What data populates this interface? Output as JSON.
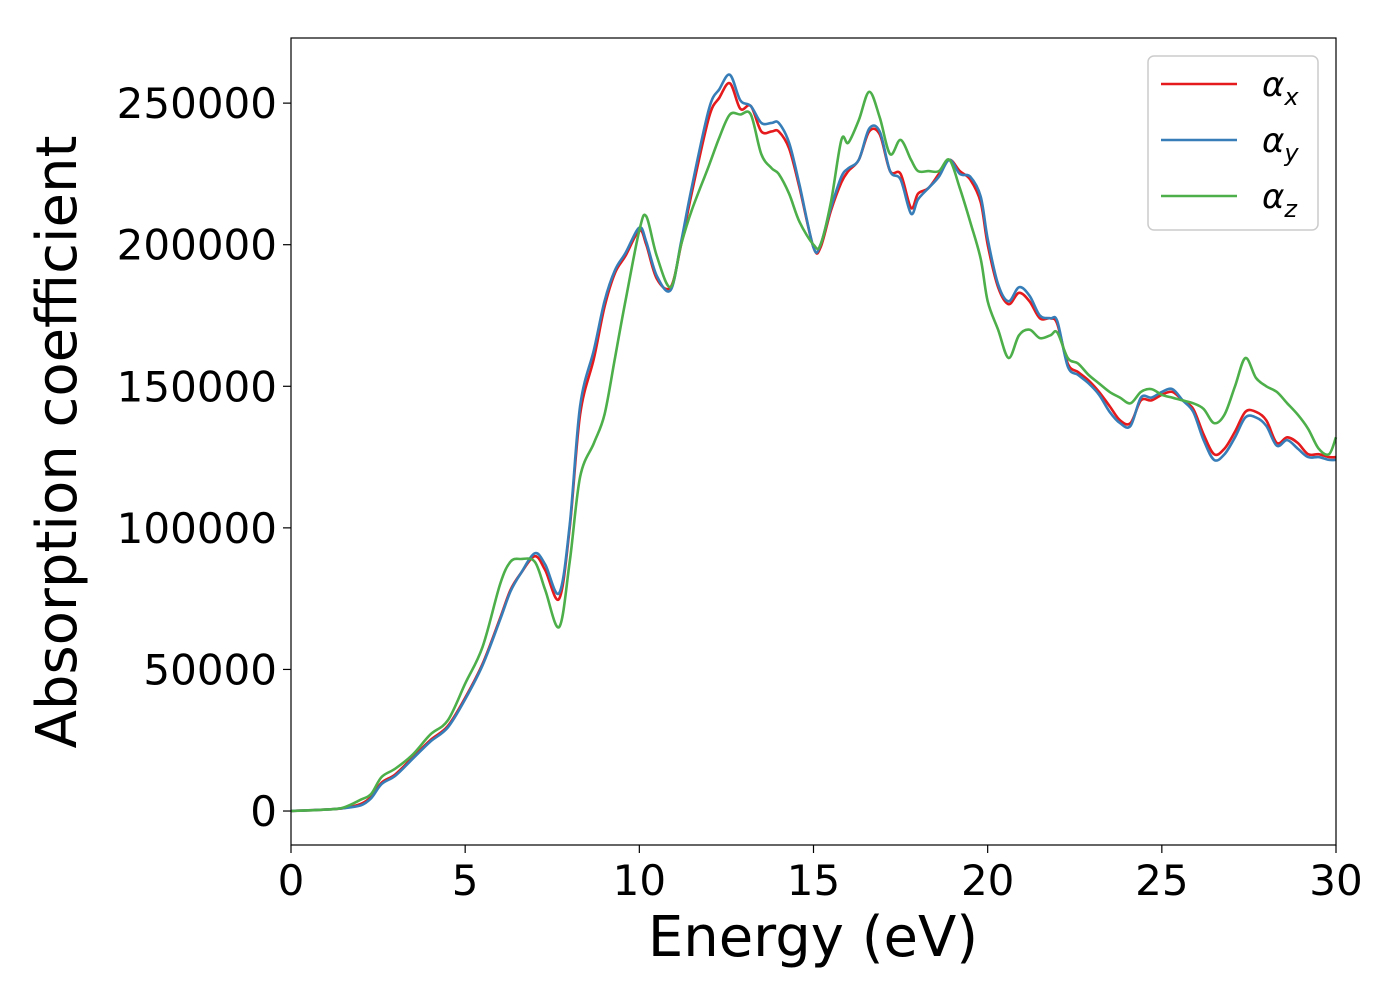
{
  "chart_data": {
    "type": "line",
    "xlabel": "Energy (eV)",
    "ylabel": "Absorption coefficient",
    "xlim": [
      0,
      30
    ],
    "ylim": [
      -12000,
      273000
    ],
    "xticks": [
      0,
      5,
      10,
      15,
      20,
      25,
      30
    ],
    "xtick_labels": [
      "0",
      "5",
      "10",
      "15",
      "20",
      "25",
      "30"
    ],
    "yticks": [
      0,
      50000,
      100000,
      150000,
      200000,
      250000
    ],
    "ytick_labels": [
      "0",
      "50000",
      "100000",
      "150000",
      "200000",
      "250000"
    ],
    "grid": false,
    "legend": "top-right",
    "series": [
      {
        "name": "α",
        "subscript": "x",
        "color": "#e41a1c",
        "x": [
          0,
          1,
          1.5,
          2,
          2.3,
          2.6,
          3,
          3.5,
          4,
          4.5,
          5,
          5.5,
          6,
          6.3,
          6.6,
          7,
          7.3,
          7.7,
          8,
          8.3,
          8.7,
          9,
          9.3,
          9.6,
          10,
          10.2,
          10.5,
          10.9,
          11.2,
          11.5,
          12,
          12.3,
          12.6,
          12.9,
          13.2,
          13.5,
          13.8,
          14,
          14.3,
          14.6,
          15,
          15.2,
          15.5,
          15.8,
          16,
          16.3,
          16.6,
          16.9,
          17.2,
          17.5,
          17.8,
          18,
          18.3,
          18.6,
          18.9,
          19.2,
          19.5,
          19.8,
          20,
          20.3,
          20.6,
          20.9,
          21.2,
          21.5,
          21.8,
          22,
          22.3,
          22.6,
          22.9,
          23.2,
          23.5,
          23.8,
          24.1,
          24.4,
          24.7,
          25,
          25.3,
          25.6,
          25.9,
          26.2,
          26.5,
          26.8,
          27.1,
          27.4,
          27.7,
          28,
          28.3,
          28.6,
          28.9,
          29.2,
          29.5,
          29.8,
          30
        ],
        "y": [
          0,
          500,
          1000,
          2500,
          5000,
          10000,
          13000,
          19000,
          25000,
          30000,
          40000,
          52000,
          68000,
          78000,
          84000,
          90000,
          85000,
          75000,
          100000,
          140000,
          160000,
          178000,
          190000,
          196000,
          205000,
          200000,
          188000,
          185000,
          200000,
          218000,
          245000,
          252000,
          257000,
          248000,
          249000,
          240000,
          240000,
          240000,
          234000,
          220000,
          199000,
          199000,
          212000,
          222000,
          226000,
          230000,
          240000,
          239000,
          226000,
          225000,
          213000,
          218000,
          220000,
          225000,
          230000,
          226000,
          223000,
          215000,
          200000,
          185000,
          179000,
          183000,
          180000,
          174000,
          174000,
          172000,
          158000,
          155000,
          152000,
          148000,
          143000,
          138000,
          137000,
          145000,
          145000,
          147000,
          148000,
          145000,
          142000,
          133000,
          126000,
          128000,
          134000,
          141000,
          141000,
          138000,
          130000,
          132000,
          130000,
          126000,
          126000,
          125000,
          125000
        ]
      },
      {
        "name": "α",
        "subscript": "y",
        "color": "#377eb8",
        "x": [
          0,
          1,
          1.5,
          2,
          2.3,
          2.6,
          3,
          3.5,
          4,
          4.5,
          5,
          5.5,
          6,
          6.3,
          6.6,
          7,
          7.3,
          7.7,
          8,
          8.3,
          8.7,
          9,
          9.3,
          9.6,
          10,
          10.2,
          10.5,
          10.9,
          11.2,
          11.5,
          12,
          12.3,
          12.6,
          12.9,
          13.2,
          13.5,
          13.8,
          14,
          14.3,
          14.6,
          15,
          15.2,
          15.5,
          15.8,
          16,
          16.3,
          16.6,
          16.9,
          17.2,
          17.5,
          17.8,
          18,
          18.3,
          18.6,
          18.9,
          19.2,
          19.5,
          19.8,
          20,
          20.3,
          20.6,
          20.9,
          21.2,
          21.5,
          21.8,
          22,
          22.3,
          22.6,
          22.9,
          23.2,
          23.5,
          23.8,
          24.1,
          24.4,
          24.7,
          25,
          25.3,
          25.6,
          25.9,
          26.2,
          26.5,
          26.8,
          27.1,
          27.4,
          27.7,
          28,
          28.3,
          28.6,
          28.9,
          29.2,
          29.5,
          29.8,
          30
        ],
        "y": [
          0,
          500,
          1000,
          2000,
          4500,
          9500,
          12500,
          18500,
          24500,
          29500,
          39500,
          51500,
          67500,
          77500,
          84000,
          91000,
          87000,
          77000,
          101000,
          143000,
          163000,
          180000,
          191000,
          197000,
          206000,
          201000,
          189000,
          184000,
          201000,
          220000,
          248000,
          255000,
          260000,
          251000,
          249000,
          243000,
          243000,
          243000,
          236000,
          221000,
          199000,
          200000,
          213000,
          224000,
          227000,
          230000,
          241000,
          240000,
          226000,
          223000,
          211000,
          216000,
          220000,
          224000,
          230000,
          225000,
          224000,
          217000,
          202000,
          186000,
          180000,
          185000,
          182000,
          175000,
          174000,
          173000,
          157000,
          154000,
          151000,
          147000,
          141000,
          137000,
          136000,
          146000,
          146000,
          148000,
          149000,
          145000,
          141000,
          131000,
          124000,
          126000,
          132000,
          139000,
          139000,
          136000,
          129000,
          131000,
          128000,
          125000,
          125000,
          124000,
          124000
        ]
      },
      {
        "name": "α",
        "subscript": "z",
        "color": "#4daf4a",
        "x": [
          0,
          1,
          1.5,
          2,
          2.3,
          2.6,
          3,
          3.5,
          4,
          4.5,
          5,
          5.5,
          6,
          6.3,
          6.6,
          7,
          7.3,
          7.7,
          8,
          8.3,
          8.7,
          9,
          9.3,
          9.6,
          10,
          10.2,
          10.5,
          10.9,
          11.2,
          11.5,
          12,
          12.3,
          12.6,
          12.9,
          13.2,
          13.5,
          13.8,
          14,
          14.3,
          14.6,
          15,
          15.2,
          15.5,
          15.8,
          16,
          16.3,
          16.6,
          16.9,
          17.2,
          17.5,
          17.8,
          18,
          18.3,
          18.6,
          18.9,
          19.2,
          19.5,
          19.8,
          20,
          20.3,
          20.6,
          20.9,
          21.2,
          21.5,
          21.8,
          22,
          22.3,
          22.6,
          22.9,
          23.2,
          23.5,
          23.8,
          24.1,
          24.4,
          24.7,
          25,
          25.3,
          25.6,
          25.9,
          26.2,
          26.5,
          26.8,
          27.1,
          27.4,
          27.7,
          28,
          28.3,
          28.6,
          28.9,
          29.2,
          29.5,
          29.8,
          30
        ],
        "y": [
          0,
          500,
          1200,
          4000,
          6000,
          12000,
          15000,
          20000,
          27000,
          32000,
          45000,
          58000,
          80000,
          88000,
          89000,
          88000,
          78000,
          65000,
          88000,
          118000,
          130000,
          140000,
          160000,
          180000,
          205000,
          210000,
          196000,
          185000,
          200000,
          212000,
          228000,
          238000,
          246000,
          246000,
          246000,
          232000,
          227000,
          225000,
          218000,
          208000,
          200000,
          200000,
          215000,
          237000,
          236000,
          244000,
          254000,
          245000,
          232000,
          237000,
          230000,
          226000,
          226000,
          226000,
          230000,
          220000,
          208000,
          195000,
          180000,
          170000,
          160000,
          168000,
          170000,
          167000,
          168000,
          169000,
          160000,
          158000,
          154000,
          151000,
          148000,
          146000,
          144000,
          148000,
          149000,
          147000,
          146000,
          145000,
          144000,
          142000,
          137000,
          140000,
          150000,
          160000,
          153000,
          150000,
          148000,
          144000,
          140000,
          135000,
          128000,
          126000,
          132000
        ]
      }
    ]
  }
}
